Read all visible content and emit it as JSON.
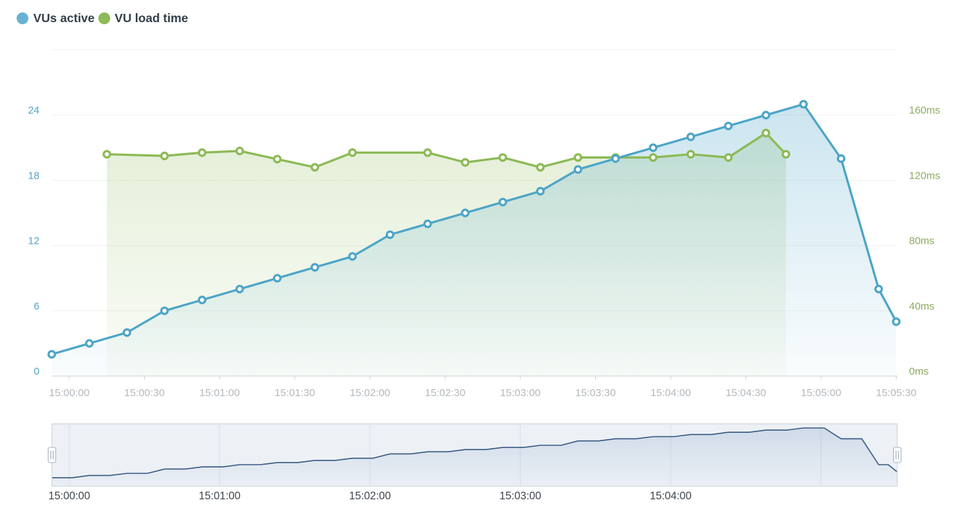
{
  "legend": {
    "items": [
      {
        "label": "VUs active",
        "color": "#65b2d4"
      },
      {
        "label": "VU load time",
        "color": "#8cba55"
      }
    ]
  },
  "chart_data": {
    "type": "line",
    "title": "",
    "x_unit": "seconds after 15:00:00",
    "grid": true,
    "legend_position": "top-left",
    "series": [
      {
        "name": "VUs active",
        "axis": "left",
        "color": "#4da5c7",
        "marker": "hollow-circle",
        "points": [
          [
            -7,
            2
          ],
          [
            8,
            3
          ],
          [
            23,
            4
          ],
          [
            38,
            6
          ],
          [
            53,
            7
          ],
          [
            68,
            8
          ],
          [
            83,
            9
          ],
          [
            98,
            10
          ],
          [
            113,
            11
          ],
          [
            128,
            13
          ],
          [
            143,
            14
          ],
          [
            158,
            15
          ],
          [
            173,
            16
          ],
          [
            188,
            17
          ],
          [
            203,
            19
          ],
          [
            218,
            20
          ],
          [
            233,
            21
          ],
          [
            248,
            22
          ],
          [
            263,
            23
          ],
          [
            278,
            24
          ],
          [
            293,
            25
          ],
          [
            308,
            20
          ],
          [
            323,
            8
          ],
          [
            330,
            5
          ]
        ]
      },
      {
        "name": "VU load time",
        "axis": "right",
        "color": "#8cba55",
        "marker": "hollow-circle",
        "points": [
          [
            15,
            136
          ],
          [
            38,
            135
          ],
          [
            53,
            137
          ],
          [
            68,
            138
          ],
          [
            83,
            133
          ],
          [
            98,
            128
          ],
          [
            113,
            137
          ],
          [
            143,
            137
          ],
          [
            158,
            131
          ],
          [
            173,
            134
          ],
          [
            188,
            128
          ],
          [
            203,
            134
          ],
          [
            218,
            134
          ],
          [
            233,
            134
          ],
          [
            248,
            136
          ],
          [
            263,
            134
          ],
          [
            278,
            149
          ],
          [
            286,
            136
          ]
        ]
      }
    ],
    "y_left": {
      "title": "",
      "tick_values": [
        0,
        6,
        12,
        18,
        24
      ],
      "tick_labels": [
        "0",
        "6",
        "12",
        "18",
        "24"
      ],
      "min": 0,
      "max": 30,
      "label_color": "#57a5c5"
    },
    "y_right": {
      "title": "",
      "tick_values": [
        0,
        40,
        80,
        120,
        160
      ],
      "tick_labels": [
        "0ms",
        "40ms",
        "80ms",
        "120ms",
        "160ms"
      ],
      "min": 0,
      "max": 200,
      "label_color": "#8bab60"
    },
    "x_axis": {
      "tick_seconds": [
        0,
        30,
        60,
        90,
        120,
        150,
        180,
        210,
        240,
        270,
        300,
        330
      ],
      "tick_labels": [
        "15:00:00",
        "15:00:30",
        "15:01:00",
        "15:01:30",
        "15:02:00",
        "15:02:30",
        "15:03:00",
        "15:03:30",
        "15:04:00",
        "15:04:30",
        "15:05:00",
        "15:05:30"
      ],
      "label_color": "#b3b9be"
    },
    "navigator": {
      "series_shown": "VUs active",
      "tick_seconds": [
        0,
        60,
        120,
        180,
        240
      ],
      "tick_labels": [
        "15:00:00",
        "15:01:00",
        "15:02:00",
        "15:03:00",
        "15:04:00"
      ],
      "gridline_seconds": [
        0,
        60,
        120,
        180,
        240,
        300
      ],
      "line_color": "#3a5a82",
      "label_color": "#3d444c",
      "range_fill": "#edf1f6",
      "border_color": "#c6cfd7"
    }
  }
}
